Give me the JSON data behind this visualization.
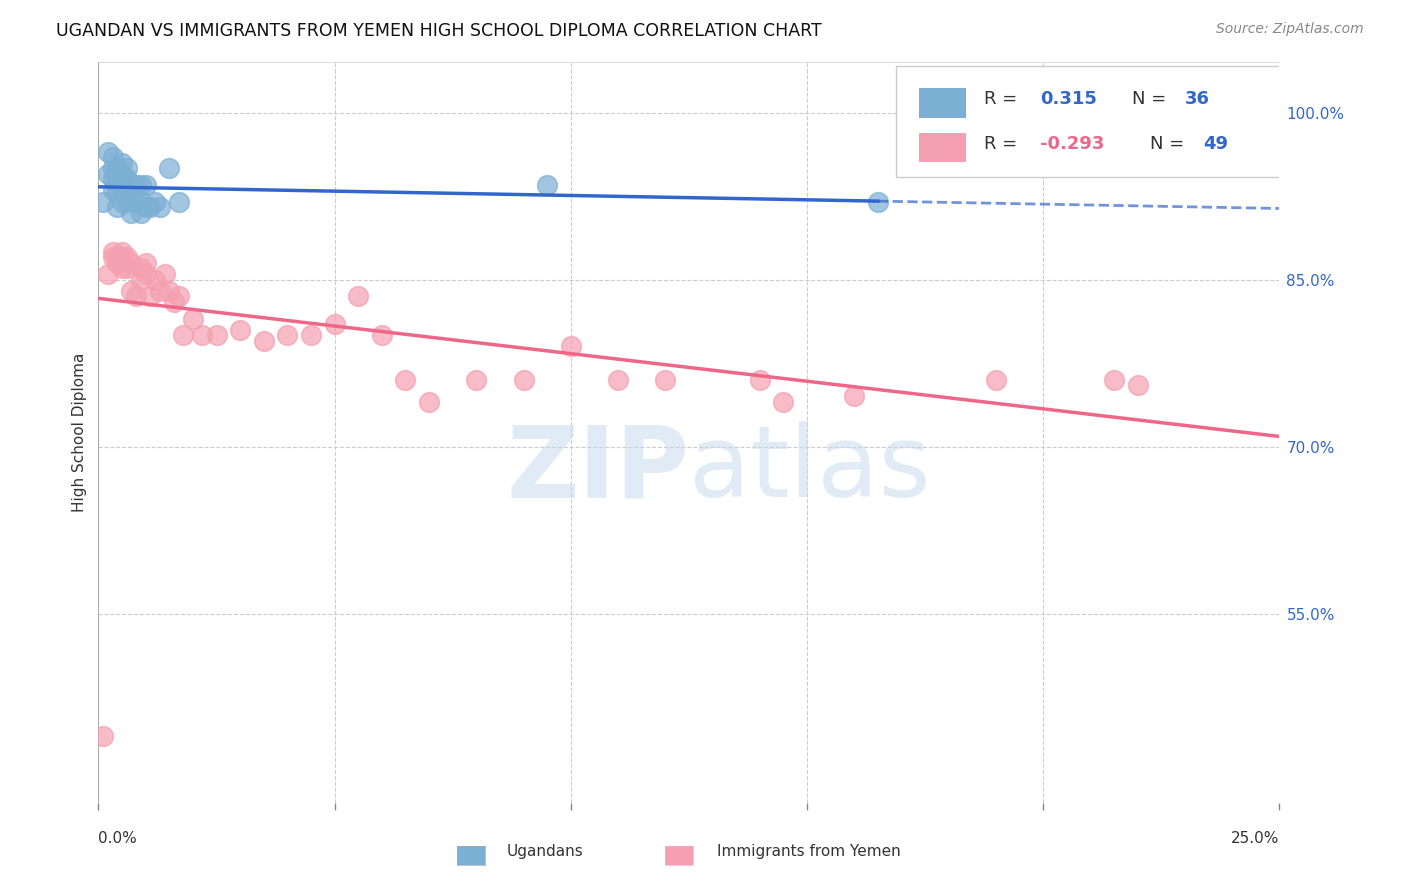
{
  "title": "UGANDAN VS IMMIGRANTS FROM YEMEN HIGH SCHOOL DIPLOMA CORRELATION CHART",
  "source": "Source: ZipAtlas.com",
  "ylabel": "High School Diploma",
  "xmin": 0.0,
  "xmax": 0.25,
  "ymin": 0.38,
  "ymax": 1.045,
  "blue_color": "#7BAFD4",
  "pink_color": "#F4A0B0",
  "line_blue": "#3366CC",
  "line_pink": "#EE6688",
  "watermark_color": "#C5D8EC",
  "legend_label1": "Ugandans",
  "legend_label2": "Immigrants from Yemen",
  "ugandan_x": [
    0.001,
    0.002,
    0.002,
    0.003,
    0.003,
    0.003,
    0.003,
    0.004,
    0.004,
    0.004,
    0.004,
    0.005,
    0.005,
    0.005,
    0.005,
    0.005,
    0.006,
    0.006,
    0.006,
    0.006,
    0.007,
    0.007,
    0.008,
    0.008,
    0.009,
    0.009,
    0.009,
    0.01,
    0.01,
    0.011,
    0.012,
    0.013,
    0.015,
    0.017,
    0.095,
    0.165
  ],
  "ugandan_y": [
    0.92,
    0.965,
    0.945,
    0.93,
    0.94,
    0.95,
    0.96,
    0.915,
    0.93,
    0.94,
    0.95,
    0.92,
    0.93,
    0.94,
    0.945,
    0.955,
    0.92,
    0.93,
    0.94,
    0.95,
    0.91,
    0.93,
    0.92,
    0.935,
    0.91,
    0.92,
    0.935,
    0.915,
    0.935,
    0.915,
    0.92,
    0.915,
    0.95,
    0.92,
    0.935,
    0.92
  ],
  "yemen_x": [
    0.001,
    0.002,
    0.003,
    0.003,
    0.004,
    0.004,
    0.005,
    0.005,
    0.005,
    0.006,
    0.006,
    0.007,
    0.007,
    0.008,
    0.009,
    0.009,
    0.01,
    0.01,
    0.011,
    0.012,
    0.013,
    0.014,
    0.015,
    0.016,
    0.017,
    0.018,
    0.02,
    0.022,
    0.025,
    0.03,
    0.035,
    0.04,
    0.045,
    0.05,
    0.055,
    0.06,
    0.065,
    0.07,
    0.08,
    0.09,
    0.1,
    0.11,
    0.12,
    0.14,
    0.145,
    0.16,
    0.19,
    0.215,
    0.22
  ],
  "yemen_y": [
    0.44,
    0.855,
    0.87,
    0.875,
    0.865,
    0.87,
    0.86,
    0.87,
    0.875,
    0.86,
    0.87,
    0.84,
    0.865,
    0.835,
    0.85,
    0.86,
    0.855,
    0.865,
    0.835,
    0.85,
    0.84,
    0.855,
    0.84,
    0.83,
    0.835,
    0.8,
    0.815,
    0.8,
    0.8,
    0.805,
    0.795,
    0.8,
    0.8,
    0.81,
    0.835,
    0.8,
    0.76,
    0.74,
    0.76,
    0.76,
    0.79,
    0.76,
    0.76,
    0.76,
    0.74,
    0.745,
    0.76,
    0.76,
    0.755
  ]
}
